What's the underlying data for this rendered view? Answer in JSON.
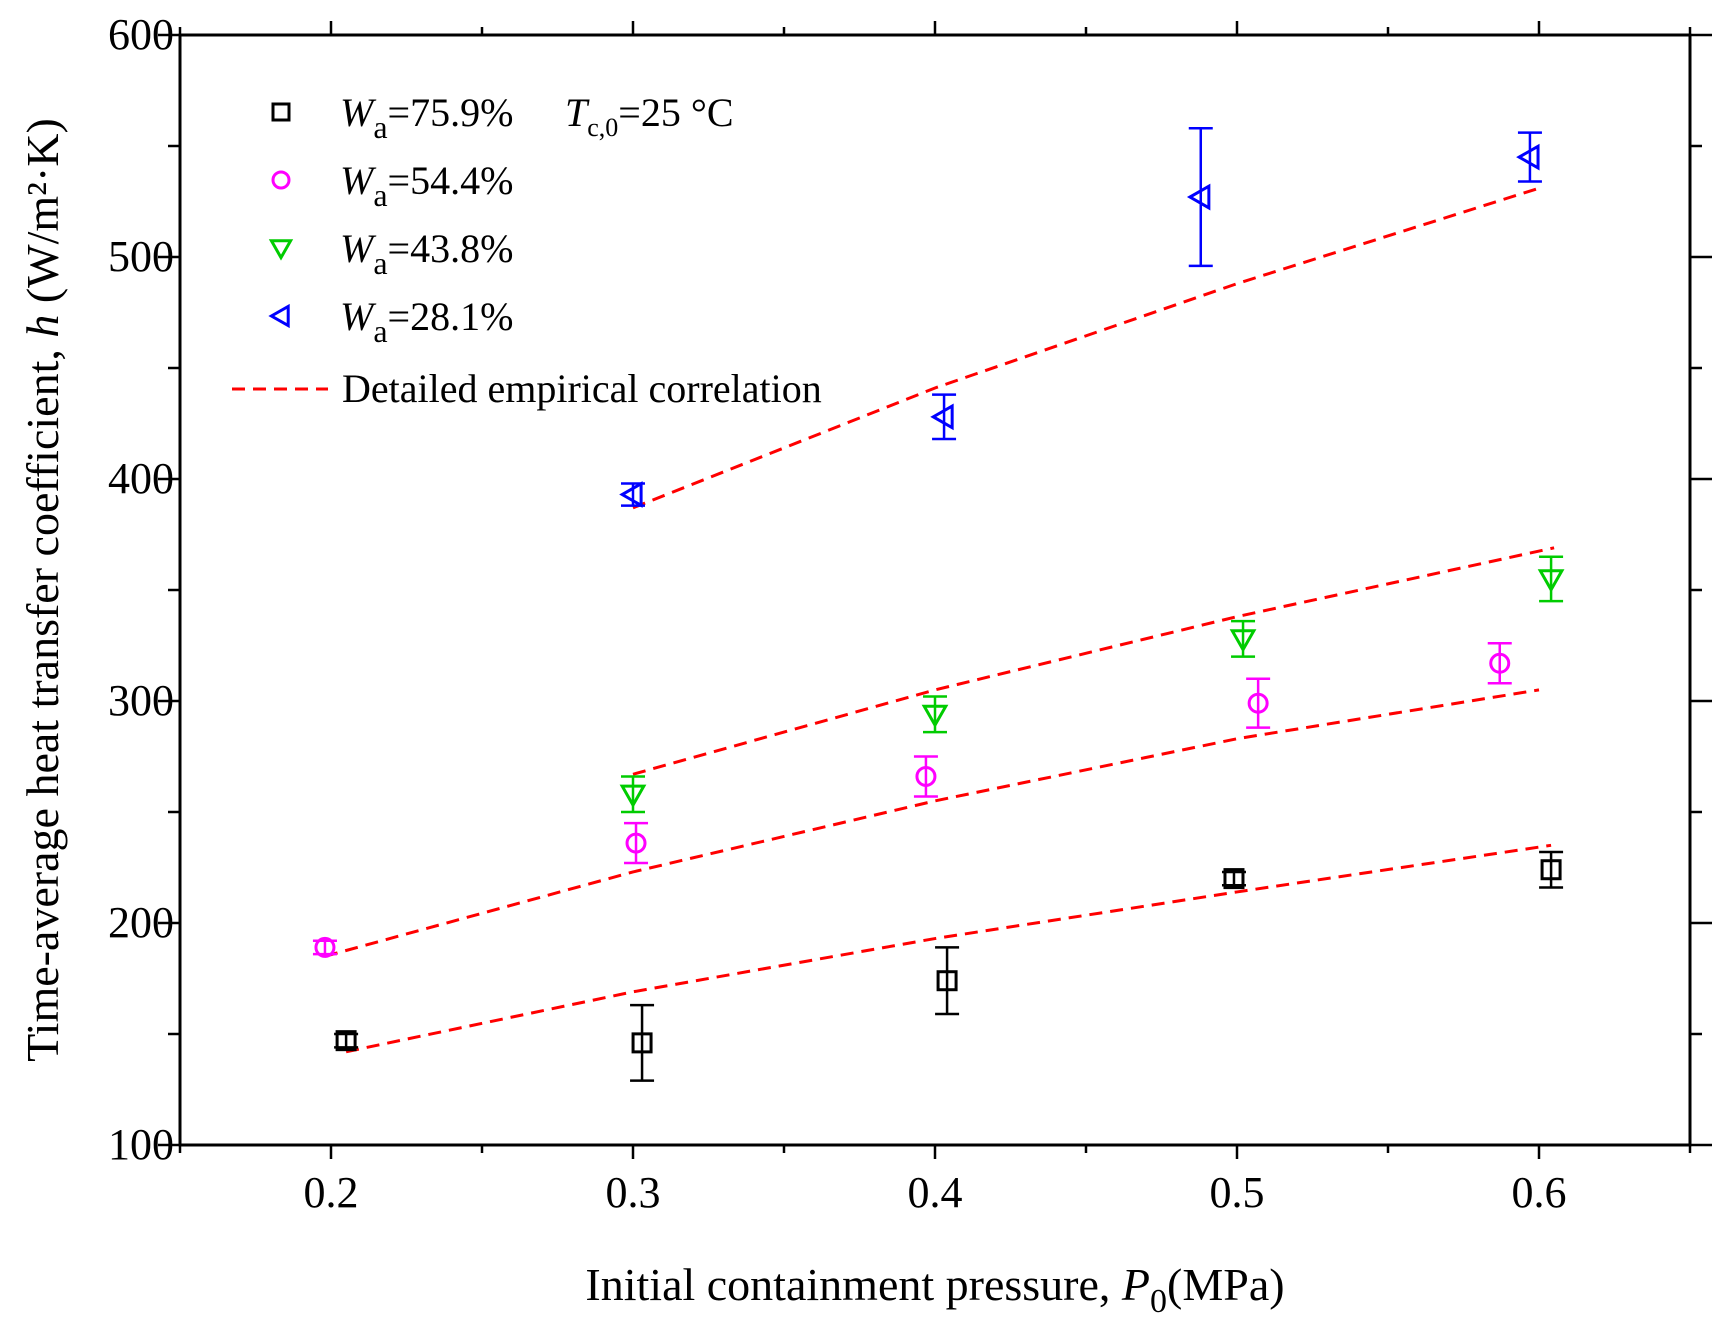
{
  "chart_data": {
    "type": "scatter",
    "title": "",
    "xlabel": "Initial containment pressure, P0(MPa)",
    "xlabel_parts": {
      "prefix": "Initial containment pressure, ",
      "var": "P",
      "sub": "0",
      "suffix": "(MPa)"
    },
    "ylabel": "Time-average heat transfer coefficient, h (W/m²·K)",
    "ylabel_parts": {
      "prefix": "Time-average heat transfer coefficient, ",
      "var": "h",
      "suffix": " (W/m²·K)"
    },
    "xlim": [
      0.15,
      0.65
    ],
    "ylim": [
      100,
      600
    ],
    "xticks": [
      0.2,
      0.3,
      0.4,
      0.5,
      0.6
    ],
    "xtick_labels": [
      "0.2",
      "0.3",
      "0.4",
      "0.5",
      "0.6"
    ],
    "yticks": [
      100,
      200,
      300,
      400,
      500,
      600
    ],
    "ytick_labels": [
      "100",
      "200",
      "300",
      "400",
      "500",
      "600"
    ],
    "legend_position": "top-left",
    "annotation": {
      "var": "T",
      "sub": "c,0",
      "text": "=25 °C"
    },
    "series": [
      {
        "name": "Wa=75.9%",
        "label_var": "W",
        "label_sub": "a",
        "label_val": "=75.9%",
        "marker": "square",
        "color": "#000000",
        "points": [
          {
            "x": 0.205,
            "y": 147,
            "err": 3
          },
          {
            "x": 0.303,
            "y": 146,
            "err": 17
          },
          {
            "x": 0.404,
            "y": 174,
            "err": 15
          },
          {
            "x": 0.499,
            "y": 220,
            "err": 3
          },
          {
            "x": 0.604,
            "y": 224,
            "err": 8
          }
        ],
        "fit": {
          "x": [
            0.205,
            0.3,
            0.4,
            0.5,
            0.604
          ],
          "y": [
            142,
            169,
            193,
            214,
            235
          ]
        }
      },
      {
        "name": "Wa=54.4%",
        "label_var": "W",
        "label_sub": "a",
        "label_val": "=54.4%",
        "marker": "circle",
        "color": "#ff00ff",
        "points": [
          {
            "x": 0.198,
            "y": 189,
            "err": 3
          },
          {
            "x": 0.301,
            "y": 236,
            "err": 9
          },
          {
            "x": 0.397,
            "y": 266,
            "err": 9
          },
          {
            "x": 0.507,
            "y": 299,
            "err": 11
          },
          {
            "x": 0.587,
            "y": 317,
            "err": 9
          }
        ],
        "fit": {
          "x": [
            0.198,
            0.3,
            0.4,
            0.5,
            0.6
          ],
          "y": [
            185,
            223,
            255,
            283,
            305
          ]
        }
      },
      {
        "name": "Wa=43.8%",
        "label_var": "W",
        "label_sub": "a",
        "label_val": "=43.8%",
        "marker": "triangle-down",
        "color": "#00cc00",
        "points": [
          {
            "x": 0.3,
            "y": 258,
            "err": 8
          },
          {
            "x": 0.4,
            "y": 294,
            "err": 8
          },
          {
            "x": 0.502,
            "y": 328,
            "err": 8
          },
          {
            "x": 0.604,
            "y": 355,
            "err": 10
          }
        ],
        "fit": {
          "x": [
            0.3,
            0.4,
            0.5,
            0.605
          ],
          "y": [
            267,
            305,
            338,
            369
          ]
        }
      },
      {
        "name": "Wa=28.1%",
        "label_var": "W",
        "label_sub": "a",
        "label_val": "=28.1%",
        "marker": "triangle-left",
        "color": "#0000ff",
        "points": [
          {
            "x": 0.3,
            "y": 393,
            "err": 5
          },
          {
            "x": 0.403,
            "y": 428,
            "err": 10
          },
          {
            "x": 0.488,
            "y": 527,
            "err": 31
          },
          {
            "x": 0.597,
            "y": 545,
            "err": 11
          }
        ],
        "fit": {
          "x": [
            0.3,
            0.4,
            0.5,
            0.6
          ],
          "y": [
            387,
            441,
            488,
            531
          ]
        }
      }
    ],
    "fit_line": {
      "name": "Detailed empirical correlation",
      "style": "dashed",
      "color": "#ff0000"
    }
  }
}
